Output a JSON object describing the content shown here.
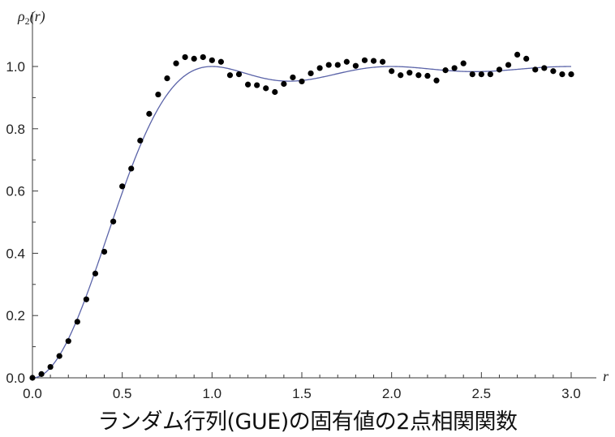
{
  "caption": "ランダム行列(GUE)の固有値の2点相関関数",
  "chart_data": {
    "type": "scatter",
    "ylabel_base": "ρ",
    "ylabel_sub": "2",
    "ylabel_arg": "(r)",
    "xlabel": "r",
    "xlim": [
      0.0,
      3.0
    ],
    "ylim": [
      0.0,
      1.1
    ],
    "x_ticks": [
      "0.0",
      "0.5",
      "1.0",
      "1.5",
      "2.0",
      "2.5",
      "3.0"
    ],
    "y_ticks": [
      "0.0",
      "0.2",
      "0.4",
      "0.6",
      "0.8",
      "1.0"
    ],
    "curve": {
      "function": "1 - (sin(pi r)/(pi r))^2",
      "color": "#5a63a8"
    },
    "points": {
      "color": "#000000",
      "x": [
        0.0,
        0.05,
        0.1,
        0.15,
        0.2,
        0.25,
        0.3,
        0.35,
        0.4,
        0.45,
        0.5,
        0.55,
        0.6,
        0.65,
        0.7,
        0.75,
        0.8,
        0.85,
        0.9,
        0.95,
        1.0,
        1.05,
        1.1,
        1.15,
        1.2,
        1.25,
        1.3,
        1.35,
        1.4,
        1.45,
        1.5,
        1.55,
        1.6,
        1.65,
        1.7,
        1.75,
        1.8,
        1.85,
        1.9,
        1.95,
        2.0,
        2.05,
        2.1,
        2.15,
        2.2,
        2.25,
        2.3,
        2.35,
        2.4,
        2.45,
        2.5,
        2.55,
        2.6,
        2.65,
        2.7,
        2.75,
        2.8,
        2.85,
        2.9,
        2.95,
        3.0
      ],
      "y": [
        0.0,
        0.012,
        0.035,
        0.07,
        0.118,
        0.18,
        0.252,
        0.335,
        0.405,
        0.502,
        0.615,
        0.672,
        0.762,
        0.848,
        0.91,
        0.962,
        1.01,
        1.03,
        1.025,
        1.03,
        1.02,
        1.015,
        0.972,
        0.975,
        0.942,
        0.94,
        0.93,
        0.918,
        0.944,
        0.965,
        0.952,
        0.978,
        0.995,
        1.005,
        1.005,
        1.015,
        1.002,
        1.02,
        1.018,
        1.015,
        0.985,
        0.972,
        0.98,
        0.972,
        0.97,
        0.955,
        0.988,
        0.995,
        1.01,
        0.975,
        0.975,
        0.975,
        0.99,
        1.005,
        1.038,
        1.025,
        0.99,
        0.995,
        0.985,
        0.975,
        0.975
      ]
    }
  }
}
